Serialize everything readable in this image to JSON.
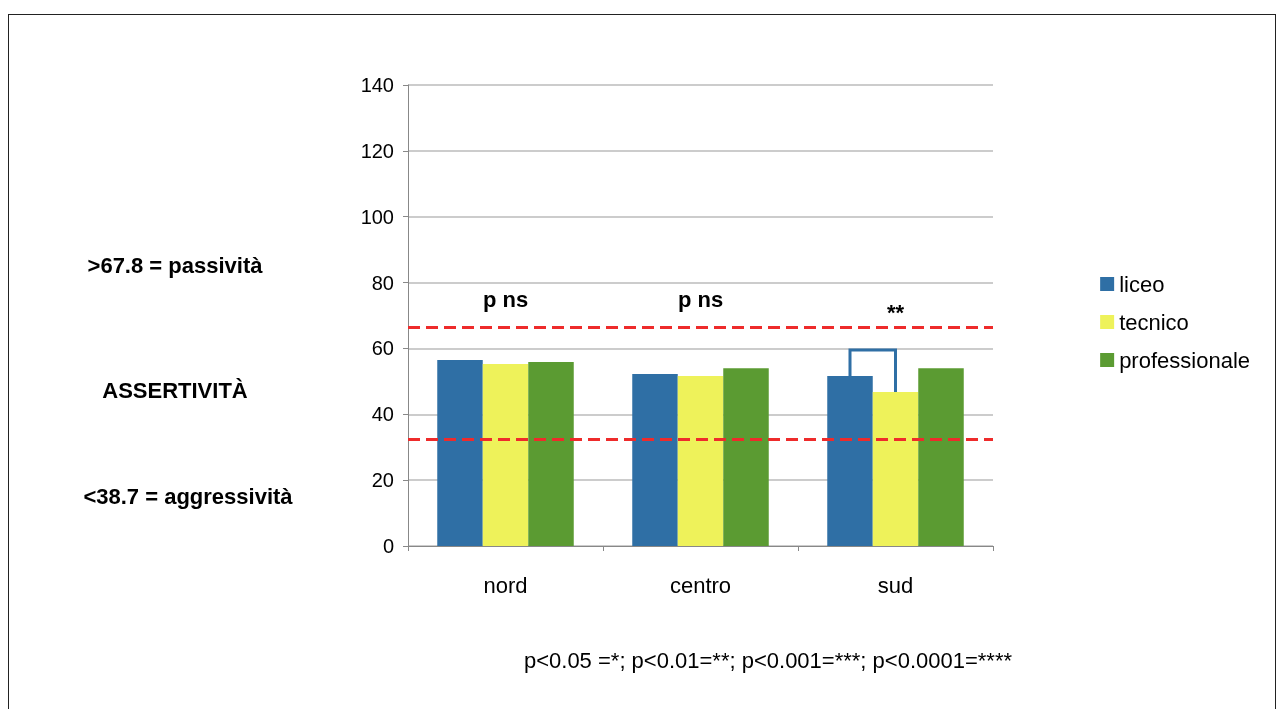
{
  "chart_data": {
    "type": "bar",
    "categories": [
      "nord",
      "centro",
      "sud"
    ],
    "series": [
      {
        "name": "liceo",
        "color": "#2f6fa5",
        "values": [
          56.5,
          52.2,
          51.6
        ]
      },
      {
        "name": "tecnico",
        "color": "#eef25a",
        "values": [
          55.3,
          51.6,
          46.8
        ]
      },
      {
        "name": "professionale",
        "color": "#5b9b32",
        "values": [
          55.9,
          54,
          54
        ]
      }
    ],
    "ylim": [
      0,
      140
    ],
    "yticks": [
      0,
      20,
      40,
      60,
      80,
      100,
      120,
      140
    ],
    "grid": "y",
    "legend": "right",
    "ref_lines": [
      {
        "axis": "y",
        "value": 66.5,
        "color": "#ee2b2b",
        "line_style": "dashed"
      },
      {
        "axis": "y",
        "value": 32.5,
        "color": "#ee2b2b",
        "line_style": "dashed"
      }
    ],
    "annotations": [
      ">67.8 = passività",
      "ASSERTIVITÀ",
      "<38.7 = aggressività",
      "p ns",
      "p ns",
      "**",
      "p<0.05 =*; p<0.01=**; p<0.001=***; p<0.0001=****"
    ]
  }
}
